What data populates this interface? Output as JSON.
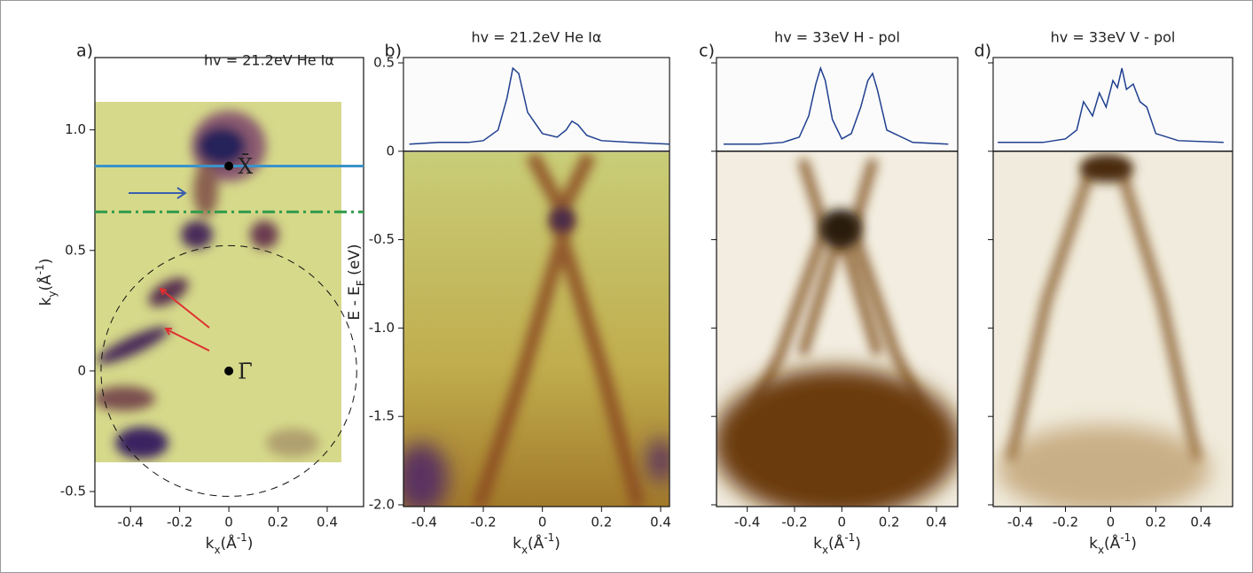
{
  "chart_data": [
    {
      "type": "image",
      "panel": "a)",
      "title": "hv = 21.2eV   He Iα",
      "xlabel": [
        "k",
        "x",
        "(Å",
        "-1",
        ")"
      ],
      "ylabel": [
        "k",
        "y",
        "(Å",
        "-1",
        ")"
      ],
      "xlim": [
        -0.545,
        0.548
      ],
      "ylim": [
        -0.5625,
        1.3
      ],
      "xticks": [
        -0.4,
        -0.2,
        0,
        0.2,
        0.4
      ],
      "yticks": [
        {
          "value": -0.5,
          "label": "-0.5"
        },
        0,
        0.5,
        {
          "value": 1,
          "label": "1.0"
        }
      ],
      "hlines": [
        {
          "y": 0.85,
          "color": "#3a93c9",
          "style": "solid"
        },
        {
          "y": 0.66,
          "color": "#2f9a4a",
          "style": "dashdot"
        }
      ],
      "circle_radius": 0.52,
      "points": [
        {
          "label": "X̄",
          "x": 0,
          "y": 0.85
        },
        {
          "label": "Γ̄",
          "x": 0,
          "y": 0
        }
      ]
    },
    {
      "type": "image",
      "panel": "b)",
      "title": "hv = 21.2eV   He Iα",
      "xlabel": [
        "k",
        "x",
        "(Å",
        "-1",
        ")"
      ],
      "ylabel": [
        "E - E",
        "F",
        "  (eV)"
      ],
      "xlim": [
        -0.47,
        0.43
      ],
      "ylim": [
        -2.01,
        0.53
      ],
      "xticks": [
        -0.4,
        -0.2,
        0,
        0.2,
        0.4
      ],
      "yticks": [
        {
          "value": -2,
          "label": "-2.0"
        },
        -1.5,
        {
          "value": -1,
          "label": "-1.0"
        },
        -0.5,
        0,
        0.5
      ],
      "mdc": {
        "color": "#1f3f8f",
        "x": [
          -0.45,
          -0.35,
          -0.25,
          -0.2,
          -0.15,
          -0.12,
          -0.1,
          -0.08,
          -0.05,
          0,
          0.05,
          0.08,
          0.1,
          0.12,
          0.15,
          0.2,
          0.3,
          0.43
        ],
        "values": [
          0.04,
          0.05,
          0.05,
          0.06,
          0.12,
          0.3,
          0.47,
          0.44,
          0.22,
          0.1,
          0.08,
          0.12,
          0.17,
          0.15,
          0.09,
          0.06,
          0.05,
          0.04
        ]
      }
    },
    {
      "type": "image",
      "panel": "c)",
      "title": "hv = 33eV   H - pol",
      "xlabel": [
        "k",
        "x",
        "(Å",
        "-1",
        ")"
      ],
      "xlim": [
        -0.53,
        0.49
      ],
      "ylim": [
        -2.01,
        0.53
      ],
      "xticks": [
        -0.4,
        -0.2,
        0,
        0.2,
        0.4
      ],
      "yticks": [
        -2,
        -1.5,
        -1,
        -0.5,
        0,
        0.5
      ],
      "mdc": {
        "color": "#1f3f8f",
        "x": [
          -0.5,
          -0.35,
          -0.25,
          -0.18,
          -0.14,
          -0.11,
          -0.09,
          -0.07,
          -0.04,
          0,
          0.04,
          0.08,
          0.11,
          0.13,
          0.15,
          0.19,
          0.3,
          0.45
        ],
        "values": [
          0.04,
          0.04,
          0.05,
          0.08,
          0.2,
          0.38,
          0.47,
          0.4,
          0.18,
          0.07,
          0.1,
          0.25,
          0.4,
          0.44,
          0.35,
          0.12,
          0.05,
          0.04
        ]
      }
    },
    {
      "type": "image",
      "panel": "d)",
      "title": "hv = 33eV   V - pol",
      "xlabel": [
        "k",
        "x",
        "(Å",
        "-1",
        ")"
      ],
      "xlim": [
        -0.52,
        0.54
      ],
      "ylim": [
        -2.01,
        0.53
      ],
      "xticks": [
        -0.4,
        -0.2,
        0,
        0.2,
        0.4
      ],
      "yticks": [
        -2,
        -1.5,
        -1,
        -0.5,
        0,
        0.5
      ],
      "mdc": {
        "color": "#1f3f8f",
        "x": [
          -0.5,
          -0.3,
          -0.2,
          -0.15,
          -0.12,
          -0.08,
          -0.05,
          -0.02,
          0.01,
          0.03,
          0.05,
          0.07,
          0.1,
          0.13,
          0.16,
          0.2,
          0.3,
          0.5
        ],
        "values": [
          0.05,
          0.05,
          0.07,
          0.12,
          0.28,
          0.2,
          0.33,
          0.25,
          0.4,
          0.36,
          0.47,
          0.35,
          0.38,
          0.28,
          0.25,
          0.1,
          0.06,
          0.05
        ]
      }
    }
  ]
}
